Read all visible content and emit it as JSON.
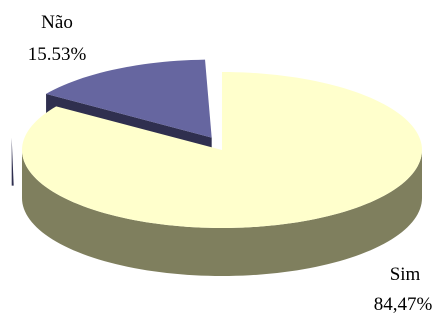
{
  "chart_data": {
    "type": "pie",
    "style": "3d-exploded",
    "title": "",
    "slices": [
      {
        "label": "Sim",
        "value": 84.47,
        "value_label": "84,47%",
        "color": "#ffffcc",
        "side_color": "#7f7f5e"
      },
      {
        "label": "Não",
        "value": 15.53,
        "value_label": "15.53%",
        "color": "#6666a0",
        "side_color": "#2f2f4f"
      }
    ],
    "legend": "none"
  }
}
